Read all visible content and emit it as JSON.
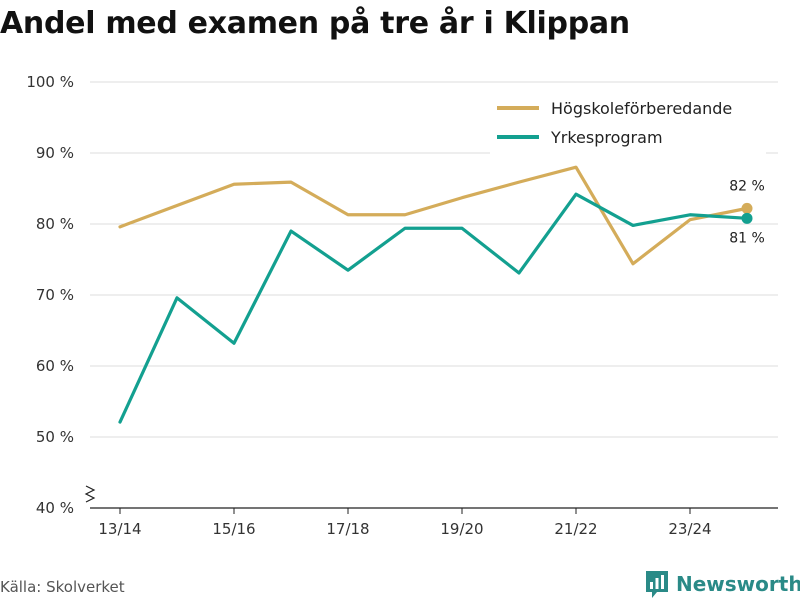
{
  "title": "Andel med examen på tre år i Klippan",
  "source": "Källa: Skolverket",
  "brand": "Newsworthy",
  "chart_data": {
    "type": "line",
    "title": "Andel med examen på tre år i Klippan",
    "xlabel": "",
    "ylabel": "",
    "x": [
      "13/14",
      "14/15",
      "15/16",
      "16/17",
      "17/18",
      "18/19",
      "19/20",
      "20/21",
      "21/22",
      "22/23",
      "23/24",
      "24/25"
    ],
    "x_tick_labels": [
      "13/14",
      "15/16",
      "17/18",
      "19/20",
      "21/22",
      "23/24"
    ],
    "ylim": [
      40,
      100
    ],
    "y_ticks": [
      40,
      50,
      60,
      70,
      80,
      90,
      100
    ],
    "y_tick_labels": [
      "40 %",
      "50 %",
      "60 %",
      "70 %",
      "80 %",
      "90 %",
      "100 %"
    ],
    "grid": true,
    "legend_position": "top-right",
    "series": [
      {
        "name": "Högskoleförberedande",
        "color": "#d4ac5a",
        "values": [
          79.6,
          82.6,
          85.6,
          85.9,
          81.3,
          81.3,
          83.7,
          85.9,
          88.0,
          74.4,
          80.6,
          82.2
        ],
        "end_label": "82 %"
      },
      {
        "name": "Yrkesprogram",
        "color": "#13a090",
        "values": [
          52.1,
          69.6,
          63.2,
          79.0,
          73.5,
          79.4,
          79.4,
          73.1,
          84.2,
          79.8,
          81.3,
          80.8
        ],
        "end_label": "81 %"
      }
    ]
  }
}
